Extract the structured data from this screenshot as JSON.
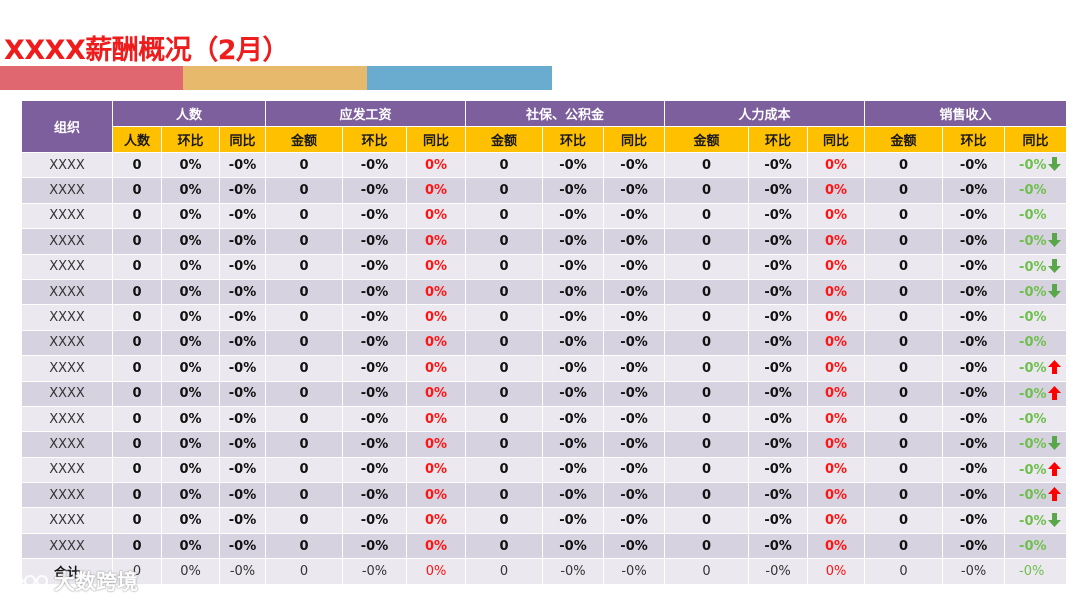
{
  "title": "XXXX薪酬概况（2月）",
  "colors": {
    "title": "#ee1c1c",
    "bar_red": "#e06770",
    "bar_gold": "#e7b96d",
    "bar_blue": "#6aabd0",
    "header_purple": "#7d5f9e",
    "subheader_gold": "#ffc000",
    "row_light": "#ebe9ef",
    "row_dark": "#d7d2e0",
    "negative_red": "#ff1414",
    "positive_green": "#6fbf4f",
    "arrow_down": "#5aa64a",
    "arrow_up": "#ff0000"
  },
  "table": {
    "org_header": "组织",
    "groups": [
      {
        "label": "人数",
        "columns": [
          "人数",
          "环比",
          "同比"
        ]
      },
      {
        "label": "应发工资",
        "columns": [
          "金额",
          "环比",
          "同比"
        ]
      },
      {
        "label": "社保、公积金",
        "columns": [
          "金额",
          "环比",
          "同比"
        ]
      },
      {
        "label": "人力成本",
        "columns": [
          "金额",
          "环比",
          "同比"
        ]
      },
      {
        "label": "销售收入",
        "columns": [
          "金额",
          "环比",
          "同比"
        ]
      }
    ],
    "rows": [
      {
        "org": "XXXX",
        "values": [
          "0",
          "0%",
          "-0%",
          "0",
          "-0%",
          "0%",
          "0",
          "-0%",
          "-0%",
          "0",
          "-0%",
          "0%",
          "0",
          "-0%",
          "-0%"
        ],
        "trend": "down"
      },
      {
        "org": "XXXX",
        "values": [
          "0",
          "0%",
          "-0%",
          "0",
          "-0%",
          "0%",
          "0",
          "-0%",
          "-0%",
          "0",
          "-0%",
          "0%",
          "0",
          "-0%",
          "-0%"
        ],
        "trend": ""
      },
      {
        "org": "XXXX",
        "values": [
          "0",
          "0%",
          "-0%",
          "0",
          "-0%",
          "0%",
          "0",
          "-0%",
          "-0%",
          "0",
          "-0%",
          "0%",
          "0",
          "-0%",
          "-0%"
        ],
        "trend": ""
      },
      {
        "org": "XXXX",
        "values": [
          "0",
          "0%",
          "-0%",
          "0",
          "-0%",
          "0%",
          "0",
          "-0%",
          "-0%",
          "0",
          "-0%",
          "0%",
          "0",
          "-0%",
          "-0%"
        ],
        "trend": "down"
      },
      {
        "org": "XXXX",
        "values": [
          "0",
          "0%",
          "-0%",
          "0",
          "-0%",
          "0%",
          "0",
          "-0%",
          "-0%",
          "0",
          "-0%",
          "0%",
          "0",
          "-0%",
          "-0%"
        ],
        "trend": "down"
      },
      {
        "org": "XXXX",
        "values": [
          "0",
          "0%",
          "-0%",
          "0",
          "-0%",
          "0%",
          "0",
          "-0%",
          "-0%",
          "0",
          "-0%",
          "0%",
          "0",
          "-0%",
          "-0%"
        ],
        "trend": "down"
      },
      {
        "org": "XXXX",
        "values": [
          "0",
          "0%",
          "-0%",
          "0",
          "-0%",
          "0%",
          "0",
          "-0%",
          "-0%",
          "0",
          "-0%",
          "0%",
          "0",
          "-0%",
          "-0%"
        ],
        "trend": ""
      },
      {
        "org": "XXXX",
        "values": [
          "0",
          "0%",
          "-0%",
          "0",
          "-0%",
          "0%",
          "0",
          "-0%",
          "-0%",
          "0",
          "-0%",
          "0%",
          "0",
          "-0%",
          "-0%"
        ],
        "trend": ""
      },
      {
        "org": "XXXX",
        "values": [
          "0",
          "0%",
          "-0%",
          "0",
          "-0%",
          "0%",
          "0",
          "-0%",
          "-0%",
          "0",
          "-0%",
          "0%",
          "0",
          "-0%",
          "-0%"
        ],
        "trend": "up"
      },
      {
        "org": "XXXX",
        "values": [
          "0",
          "0%",
          "-0%",
          "0",
          "-0%",
          "0%",
          "0",
          "-0%",
          "-0%",
          "0",
          "-0%",
          "0%",
          "0",
          "-0%",
          "-0%"
        ],
        "trend": "up"
      },
      {
        "org": "XXXX",
        "values": [
          "0",
          "0%",
          "-0%",
          "0",
          "-0%",
          "0%",
          "0",
          "-0%",
          "-0%",
          "0",
          "-0%",
          "0%",
          "0",
          "-0%",
          "-0%"
        ],
        "trend": ""
      },
      {
        "org": "XXXX",
        "values": [
          "0",
          "0%",
          "-0%",
          "0",
          "-0%",
          "0%",
          "0",
          "-0%",
          "-0%",
          "0",
          "-0%",
          "0%",
          "0",
          "-0%",
          "-0%"
        ],
        "trend": "down"
      },
      {
        "org": "XXXX",
        "values": [
          "0",
          "0%",
          "-0%",
          "0",
          "-0%",
          "0%",
          "0",
          "-0%",
          "-0%",
          "0",
          "-0%",
          "0%",
          "0",
          "-0%",
          "-0%"
        ],
        "trend": "up"
      },
      {
        "org": "XXXX",
        "values": [
          "0",
          "0%",
          "-0%",
          "0",
          "-0%",
          "0%",
          "0",
          "-0%",
          "-0%",
          "0",
          "-0%",
          "0%",
          "0",
          "-0%",
          "-0%"
        ],
        "trend": "up"
      },
      {
        "org": "XXXX",
        "values": [
          "0",
          "0%",
          "-0%",
          "0",
          "-0%",
          "0%",
          "0",
          "-0%",
          "-0%",
          "0",
          "-0%",
          "0%",
          "0",
          "-0%",
          "-0%"
        ],
        "trend": "down"
      },
      {
        "org": "XXXX",
        "values": [
          "0",
          "0%",
          "-0%",
          "0",
          "-0%",
          "0%",
          "0",
          "-0%",
          "-0%",
          "0",
          "-0%",
          "0%",
          "0",
          "-0%",
          "-0%"
        ],
        "trend": ""
      }
    ],
    "total": {
      "org": "合计",
      "values": [
        "0",
        "0%",
        "-0%",
        "0",
        "-0%",
        "0%",
        "0",
        "-0%",
        "-0%",
        "0",
        "-0%",
        "0%",
        "0",
        "-0%",
        "-0%"
      ]
    }
  },
  "watermark": {
    "text": "大数跨境",
    "icon": "brand-logo-icon"
  }
}
